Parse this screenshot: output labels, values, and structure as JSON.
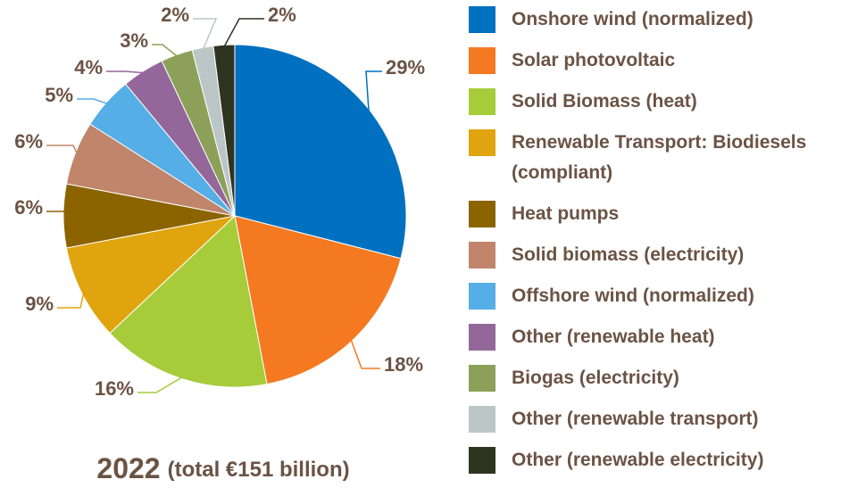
{
  "chart_data": {
    "type": "pie",
    "title": "2022",
    "subtitle": "(total €151 billion)",
    "categories": [
      "Onshore wind (normalized)",
      "Solar photovoltaic",
      "Solid Biomass (heat)",
      "Renewable Transport: Biodiesels (compliant)",
      "Heat pumps",
      "Solid biomass (electricity)",
      "Offshore wind (normalized)",
      "Other (renewable heat)",
      "Biogas (electricity)",
      "Other (renewable transport)",
      "Other (renewable electricity)"
    ],
    "values": [
      29,
      18,
      16,
      9,
      6,
      6,
      5,
      4,
      3,
      2,
      2
    ],
    "value_labels": [
      "29%",
      "18%",
      "16%",
      "9%",
      "6%",
      "6%",
      "5%",
      "4%",
      "3%",
      "2%",
      "2%"
    ],
    "colors": [
      "#0070c0",
      "#f47920",
      "#a6cc3a",
      "#e0a40e",
      "#8b6400",
      "#c0856a",
      "#55aee6",
      "#94679a",
      "#8ca05a",
      "#bcc6c6",
      "#2f3420"
    ],
    "legend": "right"
  }
}
